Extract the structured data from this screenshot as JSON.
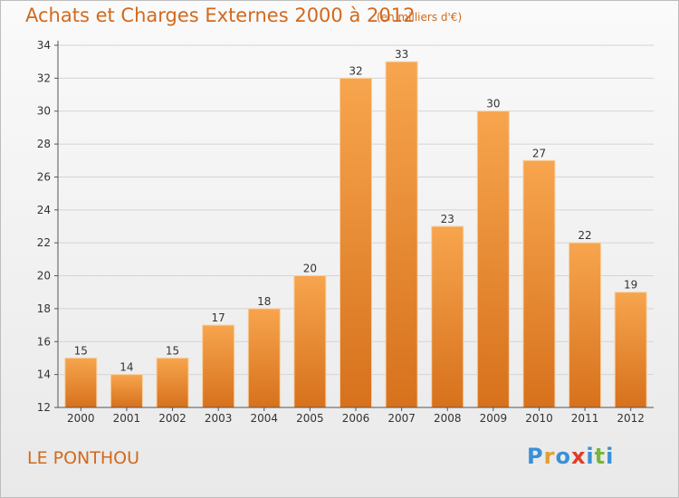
{
  "header": {
    "title": "Achats et Charges Externes 2000 à 2012",
    "subtitle": "(en milliers d'€)"
  },
  "footer": {
    "commune": "LE PONTHOU",
    "logo_letters": [
      "P",
      "r",
      "o",
      "x",
      "i",
      "t",
      "i"
    ],
    "logo_colors": [
      "#3b8fd6",
      "#e0a030",
      "#3b8fd6",
      "#e03c28",
      "#3b8fd6",
      "#77b53c",
      "#3b8fd6"
    ]
  },
  "colors": {
    "bar_top": "#f7a54e",
    "bar_bottom": "#d7711c",
    "text": "#d2691e",
    "axis": "#555555"
  },
  "chart_data": {
    "type": "bar",
    "categories": [
      "2000",
      "2001",
      "2002",
      "2003",
      "2004",
      "2005",
      "2006",
      "2007",
      "2008",
      "2009",
      "2010",
      "2011",
      "2012"
    ],
    "values": [
      15,
      14,
      15,
      17,
      18,
      20,
      32,
      33,
      23,
      30,
      27,
      22,
      19
    ],
    "title": "Achats et Charges Externes 2000 à 2012",
    "subtitle": "(en milliers d'€)",
    "xlabel": "",
    "ylabel": "",
    "ylim": [
      12,
      34
    ],
    "yticks": [
      12,
      14,
      16,
      18,
      20,
      22,
      24,
      26,
      28,
      30,
      32,
      34
    ],
    "grid": true,
    "data_labels": true
  }
}
